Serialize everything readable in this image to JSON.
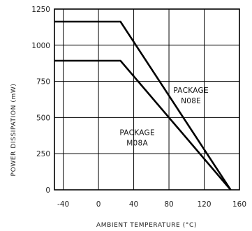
{
  "chart_data": {
    "type": "line",
    "xlabel": "AMBIENT TEMPERATURE (°C)",
    "ylabel": "POWER DISSIPATION (mW)",
    "xlim": [
      -50,
      160
    ],
    "ylim": [
      0,
      1250
    ],
    "xticks": [
      -40,
      0,
      40,
      80,
      120,
      160
    ],
    "yticks": [
      0,
      250,
      500,
      750,
      1000,
      1250
    ],
    "grid": true,
    "line_color": "#000000",
    "grid_color": "#000000",
    "series": [
      {
        "x": [
          -50,
          25,
          150
        ],
        "y": [
          1163,
          1163,
          0
        ]
      },
      {
        "x": [
          -50,
          25,
          150
        ],
        "y": [
          893,
          893,
          0
        ]
      }
    ],
    "annotations": [
      {
        "lines": [
          "PACKAGE",
          "N08E"
        ],
        "x": 105,
        "y": 670
      },
      {
        "lines": [
          "PACKAGE",
          "M08A"
        ],
        "x": 44,
        "y": 380
      }
    ]
  }
}
